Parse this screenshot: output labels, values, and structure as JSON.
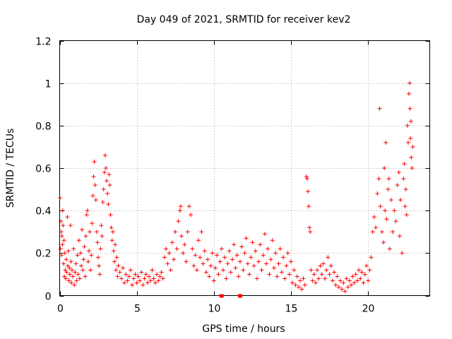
{
  "chart_data": {
    "type": "scatter",
    "title": "Day 049 of 2021, SRMTID for receiver kev2",
    "xlabel": "GPS time / hours",
    "ylabel": "SRMTID / TECUs",
    "xlim": [
      0,
      24
    ],
    "ylim": [
      0,
      1.2
    ],
    "xticks": [
      0,
      5,
      10,
      15,
      20
    ],
    "xtick_labels": [
      "0",
      "5",
      "10",
      "15",
      "20"
    ],
    "yticks": [
      0,
      0.2,
      0.4,
      0.6,
      0.8,
      1,
      1.2
    ],
    "ytick_labels": [
      "0",
      "0.2",
      "0.4",
      "0.6",
      "0.8",
      "1",
      "1.2"
    ],
    "grid": true,
    "marker": "+",
    "color": "#ff0000",
    "baseline_markers_x": [
      10.5,
      11.7
    ],
    "series": [
      {
        "name": "SRMTID",
        "points": [
          [
            0.02,
            0.46
          ],
          [
            0.05,
            0.22
          ],
          [
            0.08,
            0.35
          ],
          [
            0.1,
            0.3
          ],
          [
            0.12,
            0.19
          ],
          [
            0.15,
            0.28
          ],
          [
            0.18,
            0.24
          ],
          [
            0.2,
            0.4
          ],
          [
            0.22,
            0.33
          ],
          [
            0.25,
            0.15
          ],
          [
            0.28,
            0.26
          ],
          [
            0.3,
            0.09
          ],
          [
            0.33,
            0.2
          ],
          [
            0.36,
            0.12
          ],
          [
            0.4,
            0.08
          ],
          [
            0.43,
            0.17
          ],
          [
            0.46,
            0.11
          ],
          [
            0.5,
            0.37
          ],
          [
            0.53,
            0.14
          ],
          [
            0.56,
            0.21
          ],
          [
            0.6,
            0.07
          ],
          [
            0.63,
            0.13
          ],
          [
            0.66,
            0.1
          ],
          [
            0.7,
            0.33
          ],
          [
            0.73,
            0.16
          ],
          [
            0.76,
            0.06
          ],
          [
            0.8,
            0.12
          ],
          [
            0.85,
            0.09
          ],
          [
            0.9,
            0.22
          ],
          [
            0.95,
            0.05
          ],
          [
            1.0,
            0.11
          ],
          [
            1.05,
            0.15
          ],
          [
            1.1,
            0.07
          ],
          [
            1.15,
            0.19
          ],
          [
            1.2,
            0.1
          ],
          [
            1.25,
            0.26
          ],
          [
            1.3,
            0.08
          ],
          [
            1.35,
            0.2
          ],
          [
            1.4,
            0.14
          ],
          [
            1.45,
            0.31
          ],
          [
            1.5,
            0.12
          ],
          [
            1.55,
            0.17
          ],
          [
            1.6,
            0.23
          ],
          [
            1.65,
            0.09
          ],
          [
            1.7,
            0.28
          ],
          [
            1.75,
            0.38
          ],
          [
            1.8,
            0.4
          ],
          [
            1.85,
            0.16
          ],
          [
            1.9,
            0.21
          ],
          [
            1.95,
            0.3
          ],
          [
            2.0,
            0.12
          ],
          [
            2.05,
            0.19
          ],
          [
            2.1,
            0.34
          ],
          [
            2.15,
            0.47
          ],
          [
            2.2,
            0.56
          ],
          [
            2.25,
            0.63
          ],
          [
            2.3,
            0.52
          ],
          [
            2.35,
            0.45
          ],
          [
            2.4,
            0.3
          ],
          [
            2.45,
            0.25
          ],
          [
            2.5,
            0.18
          ],
          [
            2.55,
            0.14
          ],
          [
            2.6,
            0.1
          ],
          [
            2.65,
            0.22
          ],
          [
            2.7,
            0.33
          ],
          [
            2.75,
            0.28
          ],
          [
            2.8,
            0.44
          ],
          [
            2.85,
            0.5
          ],
          [
            2.9,
            0.58
          ],
          [
            2.95,
            0.66
          ],
          [
            3.0,
            0.6
          ],
          [
            3.05,
            0.54
          ],
          [
            3.1,
            0.48
          ],
          [
            3.15,
            0.43
          ],
          [
            3.2,
            0.57
          ],
          [
            3.25,
            0.52
          ],
          [
            3.3,
            0.38
          ],
          [
            3.35,
            0.32
          ],
          [
            3.4,
            0.26
          ],
          [
            3.45,
            0.3
          ],
          [
            3.5,
            0.21
          ],
          [
            3.55,
            0.16
          ],
          [
            3.6,
            0.24
          ],
          [
            3.65,
            0.12
          ],
          [
            3.7,
            0.18
          ],
          [
            3.75,
            0.09
          ],
          [
            3.8,
            0.14
          ],
          [
            3.9,
            0.11
          ],
          [
            4.0,
            0.08
          ],
          [
            4.1,
            0.13
          ],
          [
            4.2,
            0.06
          ],
          [
            4.3,
            0.1
          ],
          [
            4.4,
            0.07
          ],
          [
            4.5,
            0.09
          ],
          [
            4.6,
            0.12
          ],
          [
            4.7,
            0.05
          ],
          [
            4.8,
            0.08
          ],
          [
            4.9,
            0.1
          ],
          [
            5.0,
            0.06
          ],
          [
            5.1,
            0.09
          ],
          [
            5.2,
            0.07
          ],
          [
            5.3,
            0.11
          ],
          [
            5.4,
            0.05
          ],
          [
            5.5,
            0.08
          ],
          [
            5.6,
            0.1
          ],
          [
            5.7,
            0.06
          ],
          [
            5.8,
            0.09
          ],
          [
            5.9,
            0.07
          ],
          [
            6.0,
            0.12
          ],
          [
            6.1,
            0.08
          ],
          [
            6.2,
            0.06
          ],
          [
            6.3,
            0.1
          ],
          [
            6.4,
            0.07
          ],
          [
            6.5,
            0.09
          ],
          [
            6.6,
            0.11
          ],
          [
            6.7,
            0.08
          ],
          [
            6.8,
            0.18
          ],
          [
            6.9,
            0.22
          ],
          [
            7.0,
            0.15
          ],
          [
            7.1,
            0.2
          ],
          [
            7.2,
            0.12
          ],
          [
            7.3,
            0.25
          ],
          [
            7.4,
            0.17
          ],
          [
            7.5,
            0.3
          ],
          [
            7.6,
            0.22
          ],
          [
            7.7,
            0.35
          ],
          [
            7.8,
            0.4
          ],
          [
            7.85,
            0.42
          ],
          [
            7.9,
            0.28
          ],
          [
            8.0,
            0.2
          ],
          [
            8.1,
            0.24
          ],
          [
            8.2,
            0.16
          ],
          [
            8.3,
            0.3
          ],
          [
            8.4,
            0.42
          ],
          [
            8.5,
            0.38
          ],
          [
            8.6,
            0.22
          ],
          [
            8.7,
            0.14
          ],
          [
            8.8,
            0.19
          ],
          [
            8.9,
            0.12
          ],
          [
            9.0,
            0.26
          ],
          [
            9.1,
            0.18
          ],
          [
            9.2,
            0.3
          ],
          [
            9.3,
            0.15
          ],
          [
            9.4,
            0.21
          ],
          [
            9.5,
            0.11
          ],
          [
            9.6,
            0.17
          ],
          [
            9.7,
            0.09
          ],
          [
            9.8,
            0.14
          ],
          [
            9.9,
            0.2
          ],
          [
            10.0,
            0.07
          ],
          [
            10.1,
            0.13
          ],
          [
            10.2,
            0.19
          ],
          [
            10.3,
            0.1
          ],
          [
            10.4,
            0.16
          ],
          [
            10.5,
            0.22
          ],
          [
            10.6,
            0.12
          ],
          [
            10.7,
            0.18
          ],
          [
            10.8,
            0.08
          ],
          [
            10.9,
            0.15
          ],
          [
            11.0,
            0.21
          ],
          [
            11.1,
            0.11
          ],
          [
            11.2,
            0.17
          ],
          [
            11.3,
            0.24
          ],
          [
            11.4,
            0.13
          ],
          [
            11.5,
            0.19
          ],
          [
            11.6,
            0.09
          ],
          [
            11.7,
            0.16
          ],
          [
            11.8,
            0.23
          ],
          [
            11.9,
            0.12
          ],
          [
            12.0,
            0.2
          ],
          [
            12.1,
            0.27
          ],
          [
            12.2,
            0.15
          ],
          [
            12.3,
            0.1
          ],
          [
            12.4,
            0.18
          ],
          [
            12.5,
            0.25
          ],
          [
            12.6,
            0.14
          ],
          [
            12.7,
            0.21
          ],
          [
            12.8,
            0.08
          ],
          [
            12.9,
            0.16
          ],
          [
            13.0,
            0.24
          ],
          [
            13.1,
            0.12
          ],
          [
            13.2,
            0.19
          ],
          [
            13.3,
            0.29
          ],
          [
            13.4,
            0.15
          ],
          [
            13.5,
            0.22
          ],
          [
            13.6,
            0.1
          ],
          [
            13.7,
            0.17
          ],
          [
            13.8,
            0.26
          ],
          [
            13.9,
            0.13
          ],
          [
            14.0,
            0.2
          ],
          [
            14.1,
            0.09
          ],
          [
            14.2,
            0.15
          ],
          [
            14.3,
            0.22
          ],
          [
            14.4,
            0.11
          ],
          [
            14.5,
            0.18
          ],
          [
            14.6,
            0.08
          ],
          [
            14.7,
            0.14
          ],
          [
            14.8,
            0.2
          ],
          [
            14.9,
            0.1
          ],
          [
            15.0,
            0.16
          ],
          [
            15.1,
            0.06
          ],
          [
            15.2,
            0.12
          ],
          [
            15.3,
            0.05
          ],
          [
            15.4,
            0.09
          ],
          [
            15.5,
            0.04
          ],
          [
            15.6,
            0.07
          ],
          [
            15.7,
            0.03
          ],
          [
            15.8,
            0.08
          ],
          [
            15.9,
            0.05
          ],
          [
            16.0,
            0.56
          ],
          [
            16.05,
            0.55
          ],
          [
            16.1,
            0.49
          ],
          [
            16.15,
            0.42
          ],
          [
            16.2,
            0.32
          ],
          [
            16.25,
            0.3
          ],
          [
            16.3,
            0.12
          ],
          [
            16.4,
            0.07
          ],
          [
            16.5,
            0.1
          ],
          [
            16.6,
            0.06
          ],
          [
            16.7,
            0.12
          ],
          [
            16.8,
            0.08
          ],
          [
            16.9,
            0.14
          ],
          [
            17.0,
            0.1
          ],
          [
            17.1,
            0.15
          ],
          [
            17.2,
            0.08
          ],
          [
            17.3,
            0.12
          ],
          [
            17.4,
            0.18
          ],
          [
            17.5,
            0.1
          ],
          [
            17.6,
            0.14
          ],
          [
            17.7,
            0.07
          ],
          [
            17.8,
            0.11
          ],
          [
            17.9,
            0.05
          ],
          [
            18.0,
            0.09
          ],
          [
            18.1,
            0.04
          ],
          [
            18.2,
            0.07
          ],
          [
            18.3,
            0.03
          ],
          [
            18.4,
            0.06
          ],
          [
            18.5,
            0.02
          ],
          [
            18.6,
            0.08
          ],
          [
            18.7,
            0.04
          ],
          [
            18.8,
            0.07
          ],
          [
            18.9,
            0.05
          ],
          [
            19.0,
            0.09
          ],
          [
            19.1,
            0.06
          ],
          [
            19.2,
            0.1
          ],
          [
            19.3,
            0.07
          ],
          [
            19.4,
            0.12
          ],
          [
            19.5,
            0.08
          ],
          [
            19.6,
            0.11
          ],
          [
            19.7,
            0.06
          ],
          [
            19.8,
            0.1
          ],
          [
            19.9,
            0.14
          ],
          [
            20.0,
            0.07
          ],
          [
            20.1,
            0.12
          ],
          [
            20.2,
            0.18
          ],
          [
            20.3,
            0.3
          ],
          [
            20.4,
            0.37
          ],
          [
            20.5,
            0.32
          ],
          [
            20.6,
            0.48
          ],
          [
            20.7,
            0.55
          ],
          [
            20.75,
            0.88
          ],
          [
            20.8,
            0.42
          ],
          [
            20.9,
            0.3
          ],
          [
            21.0,
            0.25
          ],
          [
            21.05,
            0.6
          ],
          [
            21.1,
            0.4
          ],
          [
            21.15,
            0.72
          ],
          [
            21.2,
            0.36
          ],
          [
            21.3,
            0.5
          ],
          [
            21.35,
            0.55
          ],
          [
            21.4,
            0.22
          ],
          [
            21.5,
            0.45
          ],
          [
            21.6,
            0.3
          ],
          [
            21.7,
            0.4
          ],
          [
            21.8,
            0.35
          ],
          [
            21.9,
            0.52
          ],
          [
            22.0,
            0.58
          ],
          [
            22.05,
            0.28
          ],
          [
            22.1,
            0.45
          ],
          [
            22.2,
            0.2
          ],
          [
            22.3,
            0.55
          ],
          [
            22.35,
            0.62
          ],
          [
            22.4,
            0.42
          ],
          [
            22.45,
            0.5
          ],
          [
            22.5,
            0.38
          ],
          [
            22.55,
            0.8
          ],
          [
            22.6,
            0.72
          ],
          [
            22.65,
            0.95
          ],
          [
            22.7,
            1.0
          ],
          [
            22.72,
            0.88
          ],
          [
            22.75,
            0.74
          ],
          [
            22.78,
            0.82
          ],
          [
            22.8,
            0.65
          ],
          [
            22.85,
            0.6
          ],
          [
            22.9,
            0.7
          ]
        ]
      }
    ]
  }
}
